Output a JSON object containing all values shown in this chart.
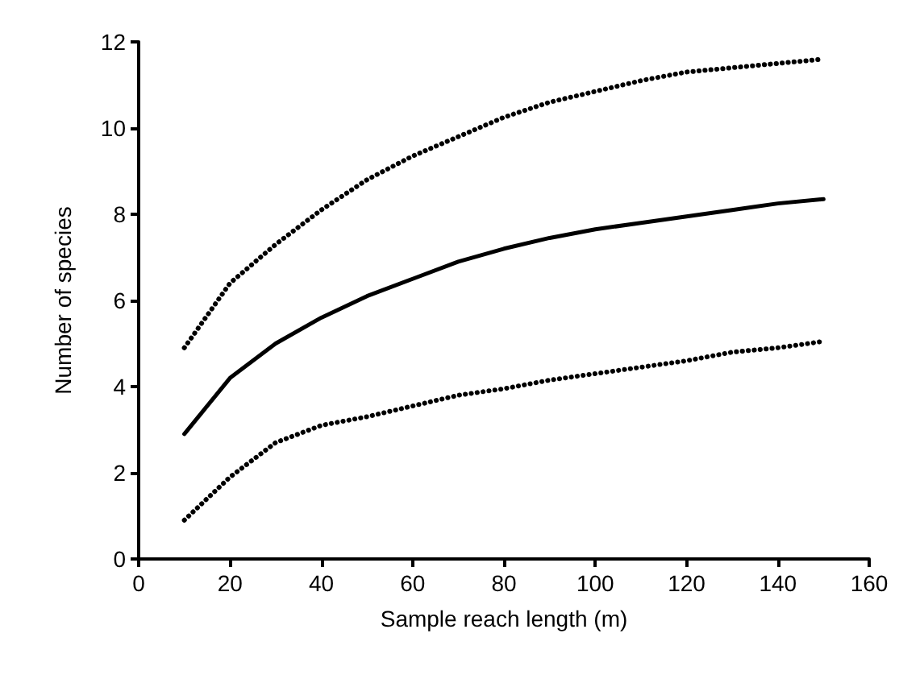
{
  "chart_data": {
    "type": "line",
    "xlabel": "Sample reach length (m)",
    "ylabel": "Number of species",
    "x": [
      10,
      20,
      30,
      40,
      50,
      60,
      70,
      80,
      90,
      100,
      110,
      120,
      130,
      140,
      150
    ],
    "series": [
      {
        "color": "#000000",
        "line_style": "dotted",
        "values": [
          4.9,
          6.4,
          7.3,
          8.1,
          8.8,
          9.35,
          9.8,
          10.25,
          10.6,
          10.85,
          11.1,
          11.3,
          11.4,
          11.5,
          11.6
        ]
      },
      {
        "color": "#000000",
        "line_style": "solid",
        "values": [
          2.9,
          4.2,
          5.0,
          5.6,
          6.1,
          6.5,
          6.9,
          7.2,
          7.45,
          7.65,
          7.8,
          7.95,
          8.1,
          8.25,
          8.35
        ]
      },
      {
        "color": "#000000",
        "line_style": "dotted",
        "values": [
          0.9,
          1.9,
          2.7,
          3.1,
          3.3,
          3.55,
          3.8,
          3.95,
          4.15,
          4.3,
          4.45,
          4.6,
          4.8,
          4.9,
          5.05
        ]
      }
    ],
    "xlim": [
      0,
      160
    ],
    "xticks": [
      0,
      20,
      40,
      60,
      80,
      100,
      120,
      140,
      160
    ],
    "ylim": [
      0,
      12
    ],
    "yticks": [
      0,
      2,
      4,
      6,
      8,
      10,
      12
    ],
    "grid": false,
    "marker": "none"
  }
}
